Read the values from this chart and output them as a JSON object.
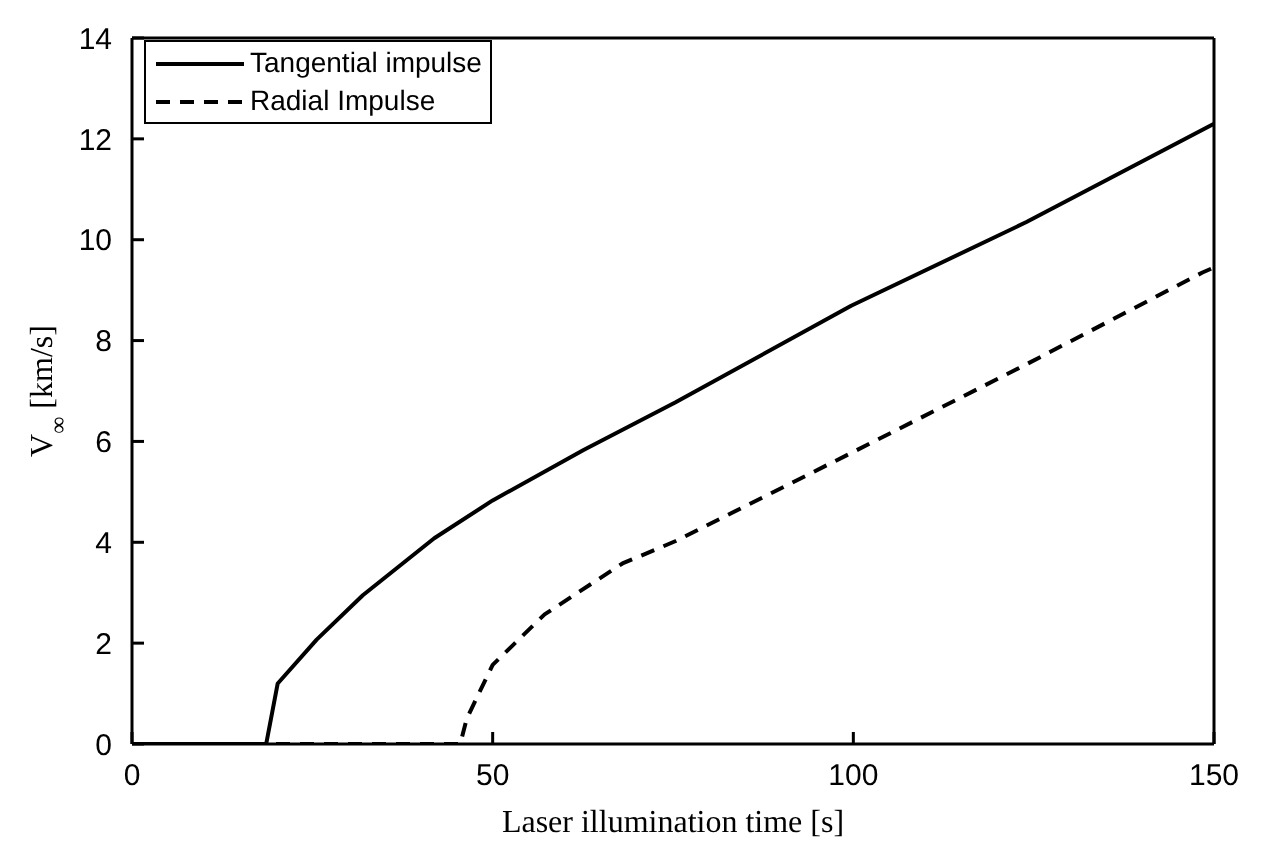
{
  "chart_data": {
    "type": "line",
    "xlabel": "Laser illumination time [s]",
    "ylabel": "V$_{∞}$ [km/s]",
    "xlim": [
      0,
      150
    ],
    "ylim": [
      0,
      14
    ],
    "xticks": [
      0,
      50,
      100,
      150
    ],
    "yticks": [
      0,
      2,
      4,
      6,
      8,
      10,
      12,
      14
    ],
    "legend": "top left",
    "marker": "none",
    "series": [
      {
        "name": "Tangential impulse",
        "color": "#000000",
        "line_style": "solid",
        "x": [
          0,
          18.6,
          20.2,
          25.6,
          32,
          41.9,
          50,
          62.6,
          75.3,
          99.7,
          124,
          150
        ],
        "values": [
          0,
          0,
          1.2,
          2.07,
          2.95,
          4.08,
          4.83,
          5.83,
          6.77,
          8.69,
          10.35,
          12.3
        ]
      },
      {
        "name": "Radial Impulse",
        "color": "#000000",
        "line_style": "dashed",
        "x": [
          0,
          45.5,
          46.4,
          50,
          57.2,
          68,
          75.3,
          99.7,
          124,
          148.4,
          150
        ],
        "values": [
          0,
          0,
          0.5,
          1.57,
          2.57,
          3.58,
          4.02,
          5.77,
          7.53,
          9.35,
          9.45
        ]
      }
    ]
  }
}
